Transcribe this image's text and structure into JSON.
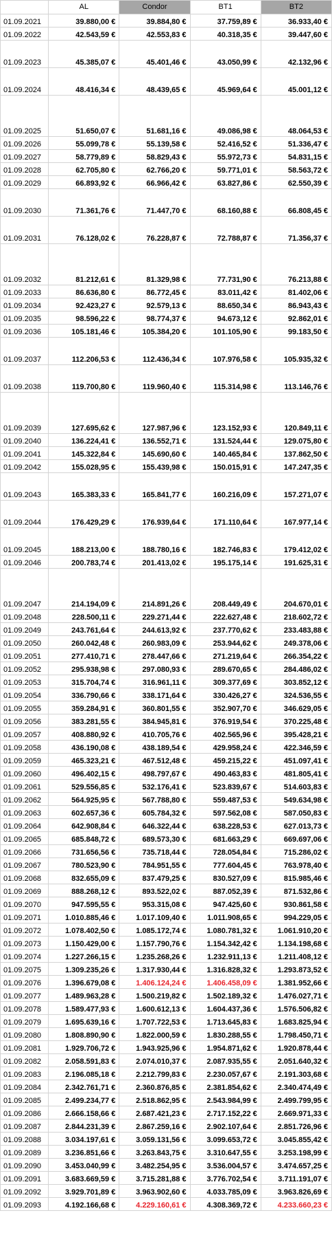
{
  "headers": [
    "",
    "AL",
    "Condor",
    "BT1",
    "BT2"
  ],
  "highlight": "#e8242c",
  "rows": [
    {
      "h": "r20",
      "date": "01.09.2021",
      "al": "39.880,00 €",
      "condor": "39.884,80 €",
      "bt1": "37.759,89 €",
      "bt2": "36.933,40 €"
    },
    {
      "h": "r20",
      "date": "01.09.2022",
      "al": "42.543,59 €",
      "condor": "42.553,83 €",
      "bt1": "40.318,35 €",
      "bt2": "39.447,60 €"
    },
    {
      "h": "r40",
      "date": "01.09.2023",
      "al": "45.385,07 €",
      "condor": "45.401,46 €",
      "bt1": "43.050,99 €",
      "bt2": "42.132,96 €"
    },
    {
      "h": "r40",
      "date": "01.09.2024",
      "al": "48.416,34 €",
      "condor": "48.439,65 €",
      "bt1": "45.969,64 €",
      "bt2": "45.001,12 €"
    },
    {
      "h": "r60",
      "date": "01.09.2025",
      "al": "51.650,07 €",
      "condor": "51.681,16 €",
      "bt1": "49.086,98 €",
      "bt2": "48.064,53 €"
    },
    {
      "h": "r20",
      "date": "01.09.2026",
      "al": "55.099,78 €",
      "condor": "55.139,58 €",
      "bt1": "52.416,52 €",
      "bt2": "51.336,47 €"
    },
    {
      "h": "r20",
      "date": "01.09.2027",
      "al": "58.779,89 €",
      "condor": "58.829,43 €",
      "bt1": "55.972,73 €",
      "bt2": "54.831,15 €"
    },
    {
      "h": "r20",
      "date": "01.09.2028",
      "al": "62.705,80 €",
      "condor": "62.766,20 €",
      "bt1": "59.771,01 €",
      "bt2": "58.563,72 €"
    },
    {
      "h": "r20",
      "date": "01.09.2029",
      "al": "66.893,92 €",
      "condor": "66.966,42 €",
      "bt1": "63.827,86 €",
      "bt2": "62.550,39 €"
    },
    {
      "h": "r40",
      "date": "01.09.2030",
      "al": "71.361,76 €",
      "condor": "71.447,70 €",
      "bt1": "68.160,88 €",
      "bt2": "66.808,45 €"
    },
    {
      "h": "r40",
      "date": "01.09.2031",
      "al": "76.128,02 €",
      "condor": "76.228,87 €",
      "bt1": "72.788,87 €",
      "bt2": "71.356,37 €"
    },
    {
      "h": "r60",
      "date": "01.09.2032",
      "al": "81.212,61 €",
      "condor": "81.329,98 €",
      "bt1": "77.731,90 €",
      "bt2": "76.213,88 €"
    },
    {
      "h": "r20",
      "date": "01.09.2033",
      "al": "86.636,80 €",
      "condor": "86.772,45 €",
      "bt1": "83.011,42 €",
      "bt2": "81.402,06 €"
    },
    {
      "h": "r20",
      "date": "01.09.2034",
      "al": "92.423,27 €",
      "condor": "92.579,13 €",
      "bt1": "88.650,34 €",
      "bt2": "86.943,43 €"
    },
    {
      "h": "r20",
      "date": "01.09.2035",
      "al": "98.596,22 €",
      "condor": "98.774,37 €",
      "bt1": "94.673,12 €",
      "bt2": "92.862,01 €"
    },
    {
      "h": "r20",
      "date": "01.09.2036",
      "al": "105.181,46 €",
      "condor": "105.384,20 €",
      "bt1": "101.105,90 €",
      "bt2": "99.183,50 €"
    },
    {
      "h": "r40",
      "date": "01.09.2037",
      "al": "112.206,53 €",
      "condor": "112.436,34 €",
      "bt1": "107.976,58 €",
      "bt2": "105.935,32 €"
    },
    {
      "h": "r40",
      "date": "01.09.2038",
      "al": "119.700,80 €",
      "condor": "119.960,40 €",
      "bt1": "115.314,98 €",
      "bt2": "113.146,76 €"
    },
    {
      "h": "r60",
      "date": "01.09.2039",
      "al": "127.695,62 €",
      "condor": "127.987,96 €",
      "bt1": "123.152,93 €",
      "bt2": "120.849,11 €"
    },
    {
      "h": "r20",
      "date": "01.09.2040",
      "al": "136.224,41 €",
      "condor": "136.552,71 €",
      "bt1": "131.524,44 €",
      "bt2": "129.075,80 €"
    },
    {
      "h": "r20",
      "date": "01.09.2041",
      "al": "145.322,84 €",
      "condor": "145.690,60 €",
      "bt1": "140.465,84 €",
      "bt2": "137.862,50 €"
    },
    {
      "h": "r20",
      "date": "01.09.2042",
      "al": "155.028,95 €",
      "condor": "155.439,98 €",
      "bt1": "150.015,91 €",
      "bt2": "147.247,35 €"
    },
    {
      "h": "r40",
      "date": "01.09.2043",
      "al": "165.383,33 €",
      "condor": "165.841,77 €",
      "bt1": "160.216,09 €",
      "bt2": "157.271,07 €"
    },
    {
      "h": "r40",
      "date": "01.09.2044",
      "al": "176.429,29 €",
      "condor": "176.939,64 €",
      "bt1": "171.110,64 €",
      "bt2": "167.977,14 €"
    },
    {
      "h": "r40",
      "date": "01.09.2045",
      "al": "188.213,00 €",
      "condor": "188.780,16 €",
      "bt1": "182.746,83 €",
      "bt2": "179.412,02 €"
    },
    {
      "h": "r20",
      "date": "01.09.2046",
      "al": "200.783,74 €",
      "condor": "201.413,02 €",
      "bt1": "195.175,14 €",
      "bt2": "191.625,31 €"
    },
    {
      "h": "r60",
      "date": "01.09.2047",
      "al": "214.194,09 €",
      "condor": "214.891,26 €",
      "bt1": "208.449,49 €",
      "bt2": "204.670,01 €"
    },
    {
      "h": "r20",
      "date": "01.09.2048",
      "al": "228.500,11 €",
      "condor": "229.271,44 €",
      "bt1": "222.627,48 €",
      "bt2": "218.602,72 €"
    },
    {
      "h": "r20",
      "date": "01.09.2049",
      "al": "243.761,64 €",
      "condor": "244.613,92 €",
      "bt1": "237.770,62 €",
      "bt2": "233.483,88 €"
    },
    {
      "h": "r20",
      "date": "01.09.2050",
      "al": "260.042,48 €",
      "condor": "260.983,09 €",
      "bt1": "253.944,62 €",
      "bt2": "249.378,06 €"
    },
    {
      "h": "r20",
      "date": "01.09.2051",
      "al": "277.410,71 €",
      "condor": "278.447,66 €",
      "bt1": "271.219,64 €",
      "bt2": "266.354,22 €"
    },
    {
      "h": "r20",
      "date": "01.09.2052",
      "al": "295.938,98 €",
      "condor": "297.080,93 €",
      "bt1": "289.670,65 €",
      "bt2": "284.486,02 €"
    },
    {
      "h": "r20",
      "date": "01.09.2053",
      "al": "315.704,74 €",
      "condor": "316.961,11 €",
      "bt1": "309.377,69 €",
      "bt2": "303.852,12 €"
    },
    {
      "h": "r20",
      "date": "01.09.2054",
      "al": "336.790,66 €",
      "condor": "338.171,64 €",
      "bt1": "330.426,27 €",
      "bt2": "324.536,55 €"
    },
    {
      "h": "r20",
      "date": "01.09.2055",
      "al": "359.284,91 €",
      "condor": "360.801,55 €",
      "bt1": "352.907,70 €",
      "bt2": "346.629,05 €"
    },
    {
      "h": "r20",
      "date": "01.09.2056",
      "al": "383.281,55 €",
      "condor": "384.945,81 €",
      "bt1": "376.919,54 €",
      "bt2": "370.225,48 €"
    },
    {
      "h": "r20",
      "date": "01.09.2057",
      "al": "408.880,92 €",
      "condor": "410.705,76 €",
      "bt1": "402.565,96 €",
      "bt2": "395.428,21 €"
    },
    {
      "h": "r20",
      "date": "01.09.2058",
      "al": "436.190,08 €",
      "condor": "438.189,54 €",
      "bt1": "429.958,24 €",
      "bt2": "422.346,59 €"
    },
    {
      "h": "r20",
      "date": "01.09.2059",
      "al": "465.323,21 €",
      "condor": "467.512,48 €",
      "bt1": "459.215,22 €",
      "bt2": "451.097,41 €"
    },
    {
      "h": "r20",
      "date": "01.09.2060",
      "al": "496.402,15 €",
      "condor": "498.797,67 €",
      "bt1": "490.463,83 €",
      "bt2": "481.805,41 €"
    },
    {
      "h": "r20",
      "date": "01.09.2061",
      "al": "529.556,85 €",
      "condor": "532.176,41 €",
      "bt1": "523.839,67 €",
      "bt2": "514.603,83 €"
    },
    {
      "h": "r20",
      "date": "01.09.2062",
      "al": "564.925,95 €",
      "condor": "567.788,80 €",
      "bt1": "559.487,53 €",
      "bt2": "549.634,98 €"
    },
    {
      "h": "r20",
      "date": "01.09.2063",
      "al": "602.657,36 €",
      "condor": "605.784,32 €",
      "bt1": "597.562,08 €",
      "bt2": "587.050,83 €"
    },
    {
      "h": "r20",
      "date": "01.09.2064",
      "al": "642.908,84 €",
      "condor": "646.322,44 €",
      "bt1": "638.228,53 €",
      "bt2": "627.013,73 €"
    },
    {
      "h": "r20",
      "date": "01.09.2065",
      "al": "685.848,72 €",
      "condor": "689.573,30 €",
      "bt1": "681.663,29 €",
      "bt2": "669.697,06 €"
    },
    {
      "h": "r20",
      "date": "01.09.2066",
      "al": "731.656,56 €",
      "condor": "735.718,44 €",
      "bt1": "728.054,84 €",
      "bt2": "715.286,02 €"
    },
    {
      "h": "r20",
      "date": "01.09.2067",
      "al": "780.523,90 €",
      "condor": "784.951,55 €",
      "bt1": "777.604,45 €",
      "bt2": "763.978,40 €"
    },
    {
      "h": "r20",
      "date": "01.09.2068",
      "al": "832.655,09 €",
      "condor": "837.479,25 €",
      "bt1": "830.527,09 €",
      "bt2": "815.985,46 €"
    },
    {
      "h": "r20",
      "date": "01.09.2069",
      "al": "888.268,12 €",
      "condor": "893.522,02 €",
      "bt1": "887.052,39 €",
      "bt2": "871.532,86 €"
    },
    {
      "h": "r20",
      "date": "01.09.2070",
      "al": "947.595,55 €",
      "condor": "953.315,08 €",
      "bt1": "947.425,60 €",
      "bt2": "930.861,58 €"
    },
    {
      "h": "r20",
      "date": "01.09.2071",
      "al": "1.010.885,46 €",
      "condor": "1.017.109,40 €",
      "bt1": "1.011.908,65 €",
      "bt2": "994.229,05 €"
    },
    {
      "h": "r20",
      "date": "01.09.2072",
      "al": "1.078.402,50 €",
      "condor": "1.085.172,74 €",
      "bt1": "1.080.781,32 €",
      "bt2": "1.061.910,20 €"
    },
    {
      "h": "r20",
      "date": "01.09.2073",
      "al": "1.150.429,00 €",
      "condor": "1.157.790,76 €",
      "bt1": "1.154.342,42 €",
      "bt2": "1.134.198,68 €"
    },
    {
      "h": "r20",
      "date": "01.09.2074",
      "al": "1.227.266,15 €",
      "condor": "1.235.268,26 €",
      "bt1": "1.232.911,13 €",
      "bt2": "1.211.408,12 €"
    },
    {
      "h": "r20",
      "date": "01.09.2075",
      "al": "1.309.235,26 €",
      "condor": "1.317.930,44 €",
      "bt1": "1.316.828,32 €",
      "bt2": "1.293.873,52 €"
    },
    {
      "h": "r20",
      "date": "01.09.2076",
      "al": "1.396.679,08 €",
      "condor": "1.406.124,24 €",
      "bt1": "1.406.458,09 €",
      "bt2": "1.381.952,66 €",
      "red": [
        "condor",
        "bt1"
      ]
    },
    {
      "h": "r20",
      "date": "01.09.2077",
      "al": "1.489.963,28 €",
      "condor": "1.500.219,82 €",
      "bt1": "1.502.189,32 €",
      "bt2": "1.476.027,71 €"
    },
    {
      "h": "r20",
      "date": "01.09.2078",
      "al": "1.589.477,93 €",
      "condor": "1.600.612,13 €",
      "bt1": "1.604.437,36 €",
      "bt2": "1.576.506,82 €"
    },
    {
      "h": "r20",
      "date": "01.09.2079",
      "al": "1.695.639,16 €",
      "condor": "1.707.722,53 €",
      "bt1": "1.713.645,83 €",
      "bt2": "1.683.825,94 €"
    },
    {
      "h": "r20",
      "date": "01.09.2080",
      "al": "1.808.890,90 €",
      "condor": "1.822.000,59 €",
      "bt1": "1.830.288,55 €",
      "bt2": "1.798.450,71 €"
    },
    {
      "h": "r20",
      "date": "01.09.2081",
      "al": "1.929.706,72 €",
      "condor": "1.943.925,96 €",
      "bt1": "1.954.871,62 €",
      "bt2": "1.920.878,44 €"
    },
    {
      "h": "r20",
      "date": "01.09.2082",
      "al": "2.058.591,83 €",
      "condor": "2.074.010,37 €",
      "bt1": "2.087.935,55 €",
      "bt2": "2.051.640,32 €"
    },
    {
      "h": "r20",
      "date": "01.09.2083",
      "al": "2.196.085,18 €",
      "condor": "2.212.799,83 €",
      "bt1": "2.230.057,67 €",
      "bt2": "2.191.303,68 €"
    },
    {
      "h": "r20",
      "date": "01.09.2084",
      "al": "2.342.761,71 €",
      "condor": "2.360.876,85 €",
      "bt1": "2.381.854,62 €",
      "bt2": "2.340.474,49 €"
    },
    {
      "h": "r20",
      "date": "01.09.2085",
      "al": "2.499.234,77 €",
      "condor": "2.518.862,95 €",
      "bt1": "2.543.984,99 €",
      "bt2": "2.499.799,95 €"
    },
    {
      "h": "r20",
      "date": "01.09.2086",
      "al": "2.666.158,66 €",
      "condor": "2.687.421,23 €",
      "bt1": "2.717.152,22 €",
      "bt2": "2.669.971,33 €"
    },
    {
      "h": "r20",
      "date": "01.09.2087",
      "al": "2.844.231,39 €",
      "condor": "2.867.259,16 €",
      "bt1": "2.902.107,64 €",
      "bt2": "2.851.726,96 €"
    },
    {
      "h": "r20",
      "date": "01.09.2088",
      "al": "3.034.197,61 €",
      "condor": "3.059.131,56 €",
      "bt1": "3.099.653,72 €",
      "bt2": "3.045.855,42 €"
    },
    {
      "h": "r20",
      "date": "01.09.2089",
      "al": "3.236.851,66 €",
      "condor": "3.263.843,75 €",
      "bt1": "3.310.647,55 €",
      "bt2": "3.253.198,99 €"
    },
    {
      "h": "r20",
      "date": "01.09.2090",
      "al": "3.453.040,99 €",
      "condor": "3.482.254,95 €",
      "bt1": "3.536.004,57 €",
      "bt2": "3.474.657,25 €"
    },
    {
      "h": "r20",
      "date": "01.09.2091",
      "al": "3.683.669,59 €",
      "condor": "3.715.281,88 €",
      "bt1": "3.776.702,54 €",
      "bt2": "3.711.191,07 €"
    },
    {
      "h": "r20",
      "date": "01.09.2092",
      "al": "3.929.701,89 €",
      "condor": "3.963.902,60 €",
      "bt1": "4.033.785,09 €",
      "bt2": "3.963.826,69 €"
    },
    {
      "h": "r20",
      "date": "01.09.2093",
      "al": "4.192.166,68 €",
      "condor": "4.229.160,61 €",
      "bt1": "4.308.369,72 €",
      "bt2": "4.233.660,23 €",
      "red": [
        "condor",
        "bt2"
      ]
    }
  ]
}
